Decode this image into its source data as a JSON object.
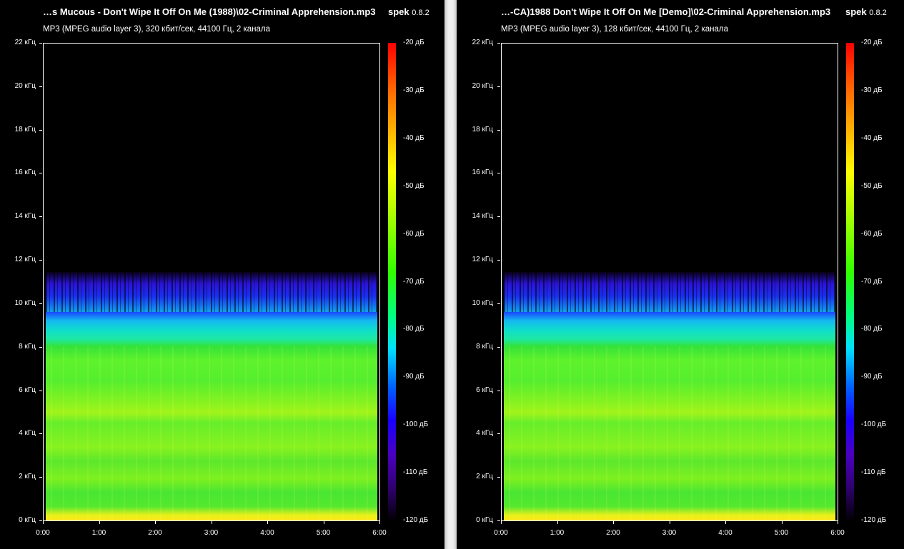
{
  "panels": [
    {
      "title": "…s Mucous - Don't Wipe It Off On Me (1988)\\02-Criminal Apprehension.mp3",
      "app_name": "spek",
      "app_version": "0.8.2",
      "info": "MP3 (MPEG audio layer 3), 320 кбит/сек, 44100 Гц, 2 канала"
    },
    {
      "title": "…-CA)1988 Don't Wipe It Off On Me [Demo]\\02-Criminal Apprehension.mp3",
      "app_name": "spek",
      "app_version": "0.8.2",
      "info": "MP3 (MPEG audio layer 3), 128 кбит/сек, 44100 Гц, 2 канала"
    }
  ],
  "freq_axis": [
    "22 кГц",
    "20 кГц",
    "18 кГц",
    "16 кГц",
    "14 кГц",
    "12 кГц",
    "10 кГц",
    "8 кГц",
    "6 кГц",
    "4 кГц",
    "2 кГц",
    "0 кГц"
  ],
  "time_axis": [
    "0:00",
    "1:00",
    "2:00",
    "3:00",
    "4:00",
    "5:00",
    "6:00"
  ],
  "db_scale": [
    "-20 дБ",
    "-30 дБ",
    "-40 дБ",
    "-50 дБ",
    "-60 дБ",
    "-70 дБ",
    "-80 дБ",
    "-90 дБ",
    "-100 дБ",
    "-110 дБ",
    "-120 дБ"
  ],
  "colors": {
    "background": "#000000",
    "divider": "#efefef"
  }
}
